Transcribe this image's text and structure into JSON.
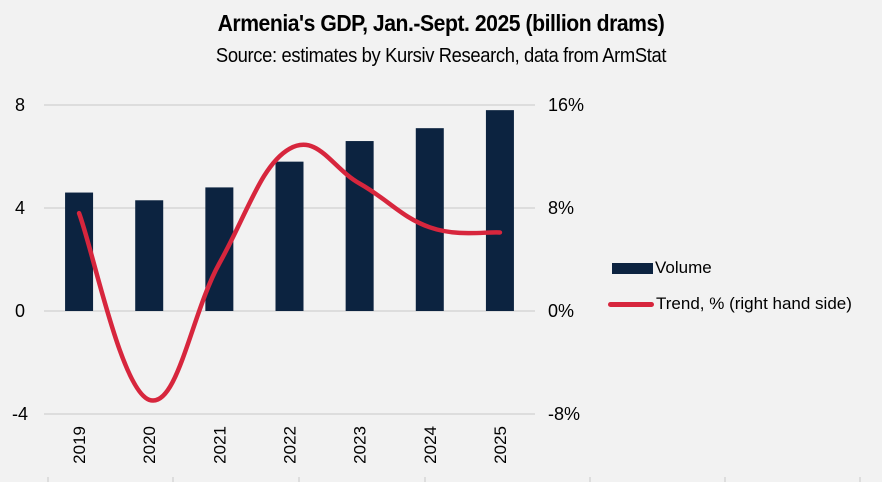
{
  "chart_data": {
    "type": "bar",
    "title": "Armenia's GDP, Jan.-Sept. 2025 (billion drams)",
    "subtitle": "Source: estimates by Kursiv Research, data from ArmStat",
    "categories": [
      "2019",
      "2020",
      "2021",
      "2022",
      "2023",
      "2024",
      "2025"
    ],
    "series": [
      {
        "name": "Volume",
        "type": "bar",
        "axis": "left",
        "color": "#0c2340",
        "values": [
          4.6,
          4.3,
          4.8,
          5.8,
          6.6,
          7.1,
          7.8
        ]
      },
      {
        "name": "Trend, % (right hand side)",
        "type": "line",
        "smooth": true,
        "axis": "right",
        "color": "#d7263d",
        "values": [
          7.6,
          -6.9,
          3.7,
          12.6,
          9.9,
          6.5,
          6.1
        ]
      }
    ],
    "left_axis": {
      "ylim": [
        -4,
        8
      ],
      "ticks": [
        "8",
        "4",
        "0",
        "-4"
      ],
      "tick_values": [
        8,
        4,
        0,
        -4
      ]
    },
    "right_axis": {
      "ylim": [
        -8,
        16
      ],
      "ticks": [
        "16%",
        "8%",
        "0%",
        "-8%"
      ],
      "tick_values": [
        16,
        8,
        0,
        -8
      ]
    },
    "xlabel": "",
    "ylabel": "",
    "grid": true,
    "legend_position": "right"
  }
}
